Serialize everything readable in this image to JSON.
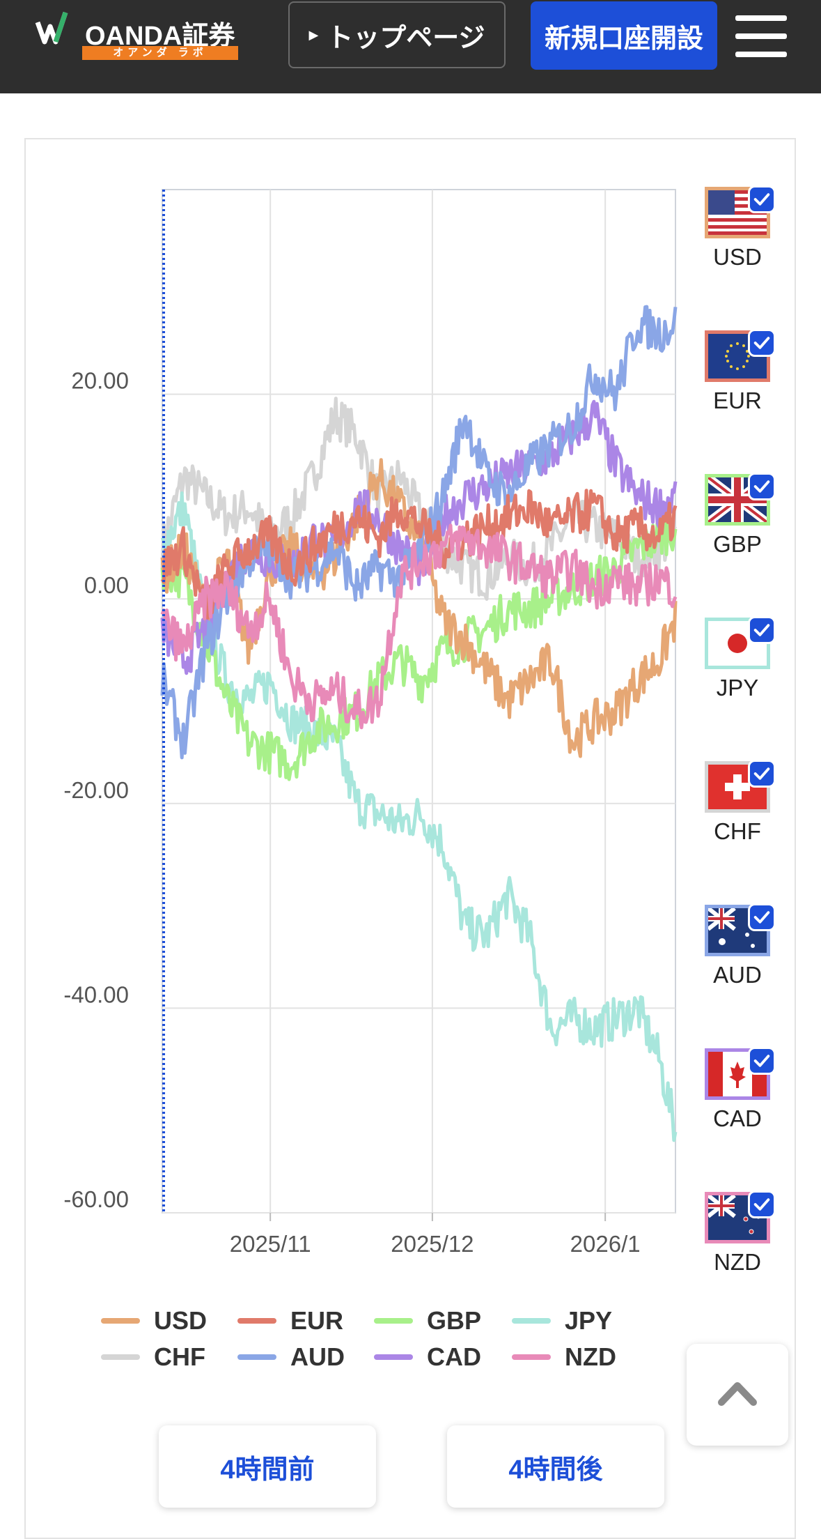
{
  "header": {
    "logo_text": "OANDA証券",
    "logo_sub": "オアンダ ラボ",
    "top_page_label": "トップページ",
    "open_account_label": "新規口座開設",
    "menu_icon": "hamburger-icon"
  },
  "currencies": [
    {
      "code": "USD",
      "color": "#e6a774",
      "flag": "us-flag-icon",
      "checked": true
    },
    {
      "code": "EUR",
      "color": "#e07a6a",
      "flag": "eu-flag-icon",
      "checked": true
    },
    {
      "code": "GBP",
      "color": "#a8f08a",
      "flag": "uk-flag-icon",
      "checked": true
    },
    {
      "code": "JPY",
      "color": "#a8e6dc",
      "flag": "jp-flag-icon",
      "checked": true
    },
    {
      "code": "CHF",
      "color": "#d5d5d5",
      "flag": "ch-flag-icon",
      "checked": true
    },
    {
      "code": "AUD",
      "color": "#8aa6e6",
      "flag": "au-flag-icon",
      "checked": true
    },
    {
      "code": "CAD",
      "color": "#ab86e6",
      "flag": "ca-flag-icon",
      "checked": true
    },
    {
      "code": "NZD",
      "color": "#e88ab8",
      "flag": "nz-flag-icon",
      "checked": true
    }
  ],
  "chart_data": {
    "type": "line",
    "xlabel": "",
    "ylabel": "",
    "ylim": [
      -60,
      40
    ],
    "yticks": [
      "20.00",
      "0.00",
      "-20.00",
      "-40.00",
      "-60.00"
    ],
    "ytick_values": [
      20,
      0,
      -20,
      -40,
      -60
    ],
    "xticks": [
      "2025/11",
      "2025/12",
      "2026/1"
    ],
    "xtick_days": [
      20,
      50,
      82
    ],
    "x_days": [
      0,
      95
    ],
    "legend_position": "bottom",
    "series": [
      {
        "name": "USD",
        "values": [
          [
            0,
            2
          ],
          [
            4,
            5
          ],
          [
            8,
            -1
          ],
          [
            12,
            4
          ],
          [
            16,
            -5
          ],
          [
            20,
            3
          ],
          [
            24,
            5
          ],
          [
            28,
            2
          ],
          [
            32,
            4
          ],
          [
            36,
            8
          ],
          [
            40,
            12
          ],
          [
            44,
            9
          ],
          [
            48,
            5
          ],
          [
            52,
            -2
          ],
          [
            56,
            -4
          ],
          [
            60,
            -7
          ],
          [
            64,
            -10
          ],
          [
            68,
            -8
          ],
          [
            72,
            -6
          ],
          [
            76,
            -14
          ],
          [
            80,
            -12
          ],
          [
            84,
            -11
          ],
          [
            88,
            -8
          ],
          [
            92,
            -6
          ],
          [
            95,
            -2
          ]
        ]
      },
      {
        "name": "EUR",
        "values": [
          [
            0,
            3
          ],
          [
            4,
            5
          ],
          [
            8,
            -1
          ],
          [
            12,
            3
          ],
          [
            16,
            5
          ],
          [
            20,
            6
          ],
          [
            24,
            3
          ],
          [
            28,
            5
          ],
          [
            32,
            7
          ],
          [
            36,
            8
          ],
          [
            40,
            6
          ],
          [
            44,
            9
          ],
          [
            48,
            7
          ],
          [
            52,
            5
          ],
          [
            56,
            6
          ],
          [
            60,
            7
          ],
          [
            64,
            8
          ],
          [
            68,
            9
          ],
          [
            72,
            7
          ],
          [
            76,
            8
          ],
          [
            80,
            9
          ],
          [
            84,
            6
          ],
          [
            88,
            7
          ],
          [
            92,
            6
          ],
          [
            95,
            8
          ]
        ]
      },
      {
        "name": "GBP",
        "values": [
          [
            0,
            3
          ],
          [
            4,
            2
          ],
          [
            8,
            -4
          ],
          [
            12,
            -10
          ],
          [
            16,
            -14
          ],
          [
            20,
            -15
          ],
          [
            24,
            -16
          ],
          [
            28,
            -13
          ],
          [
            32,
            -12
          ],
          [
            36,
            -11
          ],
          [
            40,
            -8
          ],
          [
            44,
            -6
          ],
          [
            48,
            -8
          ],
          [
            52,
            -5
          ],
          [
            56,
            -4
          ],
          [
            60,
            -3
          ],
          [
            64,
            -1
          ],
          [
            68,
            -1
          ],
          [
            72,
            0
          ],
          [
            76,
            1
          ],
          [
            80,
            2
          ],
          [
            84,
            3
          ],
          [
            88,
            5
          ],
          [
            92,
            6
          ],
          [
            95,
            7
          ]
        ]
      },
      {
        "name": "JPY",
        "values": [
          [
            0,
            5
          ],
          [
            4,
            9
          ],
          [
            8,
            -2
          ],
          [
            12,
            -8
          ],
          [
            16,
            -10
          ],
          [
            20,
            -8
          ],
          [
            24,
            -12
          ],
          [
            28,
            -13
          ],
          [
            32,
            -14
          ],
          [
            36,
            -20
          ],
          [
            40,
            -21
          ],
          [
            44,
            -22
          ],
          [
            48,
            -21
          ],
          [
            52,
            -24
          ],
          [
            56,
            -32
          ],
          [
            60,
            -33
          ],
          [
            64,
            -29
          ],
          [
            68,
            -33
          ],
          [
            72,
            -42
          ],
          [
            76,
            -41
          ],
          [
            80,
            -42
          ],
          [
            84,
            -41
          ],
          [
            88,
            -40
          ],
          [
            92,
            -45
          ],
          [
            95,
            -52
          ]
        ]
      },
      {
        "name": "CHF",
        "values": [
          [
            0,
            5
          ],
          [
            4,
            12
          ],
          [
            8,
            10
          ],
          [
            12,
            8
          ],
          [
            16,
            9
          ],
          [
            20,
            6
          ],
          [
            24,
            8
          ],
          [
            28,
            12
          ],
          [
            32,
            18
          ],
          [
            36,
            16
          ],
          [
            40,
            10
          ],
          [
            44,
            12
          ],
          [
            48,
            8
          ],
          [
            52,
            5
          ],
          [
            56,
            3
          ],
          [
            60,
            2
          ],
          [
            64,
            4
          ],
          [
            68,
            3
          ],
          [
            72,
            5
          ],
          [
            76,
            8
          ],
          [
            80,
            7
          ],
          [
            84,
            6
          ],
          [
            88,
            4
          ],
          [
            92,
            5
          ],
          [
            95,
            6
          ]
        ]
      },
      {
        "name": "AUD",
        "values": [
          [
            0,
            -8
          ],
          [
            4,
            -14
          ],
          [
            8,
            -5
          ],
          [
            12,
            0
          ],
          [
            16,
            4
          ],
          [
            20,
            5
          ],
          [
            24,
            2
          ],
          [
            28,
            3
          ],
          [
            32,
            5
          ],
          [
            36,
            1
          ],
          [
            40,
            3
          ],
          [
            44,
            2
          ],
          [
            48,
            5
          ],
          [
            52,
            10
          ],
          [
            56,
            18
          ],
          [
            60,
            12
          ],
          [
            64,
            10
          ],
          [
            68,
            13
          ],
          [
            72,
            15
          ],
          [
            76,
            17
          ],
          [
            80,
            22
          ],
          [
            84,
            20
          ],
          [
            88,
            27
          ],
          [
            92,
            26
          ],
          [
            95,
            27
          ]
        ]
      },
      {
        "name": "CAD",
        "values": [
          [
            0,
            -3
          ],
          [
            4,
            -6
          ],
          [
            8,
            -3
          ],
          [
            12,
            2
          ],
          [
            16,
            5
          ],
          [
            20,
            4
          ],
          [
            24,
            3
          ],
          [
            28,
            6
          ],
          [
            32,
            5
          ],
          [
            36,
            9
          ],
          [
            40,
            8
          ],
          [
            44,
            5
          ],
          [
            48,
            3
          ],
          [
            52,
            8
          ],
          [
            56,
            10
          ],
          [
            60,
            11
          ],
          [
            64,
            12
          ],
          [
            68,
            13
          ],
          [
            72,
            14
          ],
          [
            76,
            16
          ],
          [
            80,
            18
          ],
          [
            84,
            13
          ],
          [
            88,
            10
          ],
          [
            92,
            9
          ],
          [
            95,
            10
          ]
        ]
      },
      {
        "name": "NZD",
        "values": [
          [
            0,
            -2
          ],
          [
            4,
            -5
          ],
          [
            8,
            0
          ],
          [
            12,
            1
          ],
          [
            16,
            -3
          ],
          [
            20,
            0
          ],
          [
            24,
            -8
          ],
          [
            28,
            -10
          ],
          [
            32,
            -9
          ],
          [
            36,
            -11
          ],
          [
            40,
            -10
          ],
          [
            44,
            2
          ],
          [
            48,
            4
          ],
          [
            52,
            5
          ],
          [
            56,
            6
          ],
          [
            60,
            5
          ],
          [
            64,
            4
          ],
          [
            68,
            3
          ],
          [
            72,
            2
          ],
          [
            76,
            3
          ],
          [
            80,
            1
          ],
          [
            84,
            2
          ],
          [
            88,
            1
          ],
          [
            92,
            2
          ],
          [
            95,
            1
          ]
        ]
      }
    ]
  },
  "nav": {
    "prev_label": "4時間前",
    "next_label": "4時間後",
    "scroll_top_icon": "chevron-up-icon"
  }
}
